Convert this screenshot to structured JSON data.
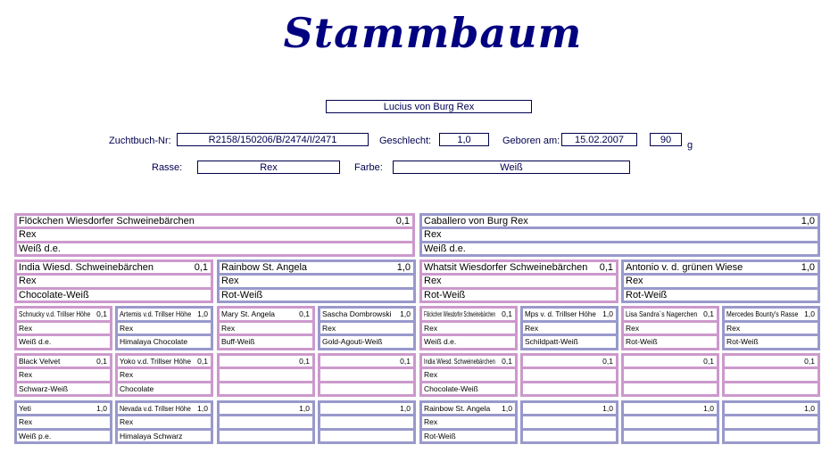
{
  "title": "Stammbaum",
  "animal": {
    "name": "Lucius von Burg Rex",
    "zuchtbuch_label": "Zuchtbuch-Nr:",
    "zuchtbuch": "R2158/150206/B/2474/I/2471",
    "geschlecht_label": "Geschlecht:",
    "geschlecht": "1,0",
    "geboren_label": "Geboren am:",
    "geboren": "15.02.2007",
    "gewicht": "90",
    "gewicht_unit": "g",
    "rasse_label": "Rasse:",
    "rasse": "Rex",
    "farbe_label": "Farbe:",
    "farbe": "Weiß"
  },
  "colors": {
    "female": "#cc99cc",
    "male": "#9999cc",
    "text": "#000080"
  },
  "generations": [
    [
      {
        "name": "Flöckchen Wiesdorfer Schweinebärchen",
        "sex": "0,1",
        "rasse": "Rex",
        "farbe": "Weiß d.e."
      },
      {
        "name": "Caballero von Burg Rex",
        "sex": "1,0",
        "rasse": "Rex",
        "farbe": "Weiß d.e."
      }
    ],
    [
      {
        "name": "India Wiesd. Schweinebärchen",
        "sex": "0,1",
        "rasse": "Rex",
        "farbe": "Chocolate-Weiß"
      },
      {
        "name": "Rainbow St. Angela",
        "sex": "1,0",
        "rasse": "Rex",
        "farbe": "Rot-Weiß"
      },
      {
        "name": "Whatsit Wiesdorfer Schweinebärchen",
        "sex": "0,1",
        "rasse": "Rex",
        "farbe": "Rot-Weiß"
      },
      {
        "name": "Antonio v. d. grünen Wiese",
        "sex": "1,0",
        "rasse": "Rex",
        "farbe": "Rot-Weiß"
      }
    ],
    [
      {
        "name": "Schnucky v.d. Trillser Höhe",
        "sex": "0,1",
        "rasse": "Rex",
        "farbe": "Weiß d.e."
      },
      {
        "name": "Artemis v.d. Trillser Höhe",
        "sex": "1,0",
        "rasse": "Rex",
        "farbe": "Himalaya Chocolate"
      },
      {
        "name": "Mary St. Angela",
        "sex": "0,1",
        "rasse": "Rex",
        "farbe": "Buff-Weiß"
      },
      {
        "name": "Sascha Dombrowski",
        "sex": "1,0",
        "rasse": "Rex",
        "farbe": "Gold-Agouti-Weiß"
      },
      {
        "name": "Flöckchen Wiesdorfer Schweinebärchen",
        "sex": "0,1",
        "rasse": "Rex",
        "farbe": "Weiß d.e."
      },
      {
        "name": "Mps v. d. Trillser Höhe",
        "sex": "1,0",
        "rasse": "Rex",
        "farbe": "Schildpatt-Weiß"
      },
      {
        "name": "Lisa Sandra´s Nagerchen",
        "sex": "0,1",
        "rasse": "Rex",
        "farbe": "Rot-Weiß"
      },
      {
        "name": "Mercedes Bounty's Rasse",
        "sex": "1,0",
        "rasse": "Rex",
        "farbe": "Rot-Weiß"
      }
    ],
    [
      {
        "name": "Black Velvet",
        "sex": "0,1",
        "rasse": "Rex",
        "farbe": "Schwarz-Weiß"
      },
      {
        "name": "Yoko v.d. Trillser Höhe",
        "sex": "0,1",
        "rasse": "Rex",
        "farbe": "Chocolate"
      },
      {
        "name": "",
        "sex": "0,1",
        "rasse": "",
        "farbe": ""
      },
      {
        "name": "",
        "sex": "0,1",
        "rasse": "",
        "farbe": ""
      },
      {
        "name": "India Wiesd. Schweinebärchen",
        "sex": "0,1",
        "rasse": "Rex",
        "farbe": "Chocolate-Weiß"
      },
      {
        "name": "",
        "sex": "0,1",
        "rasse": "",
        "farbe": ""
      },
      {
        "name": "",
        "sex": "0,1",
        "rasse": "",
        "farbe": ""
      },
      {
        "name": "",
        "sex": "0,1",
        "rasse": "",
        "farbe": ""
      }
    ],
    [
      {
        "name": "Yeti",
        "sex": "1,0",
        "rasse": "Rex",
        "farbe": "Weiß p.e."
      },
      {
        "name": "Nevada v.d. Trillser Höhe",
        "sex": "1,0",
        "rasse": "Rex",
        "farbe": "Himalaya Schwarz"
      },
      {
        "name": "",
        "sex": "1,0",
        "rasse": "",
        "farbe": ""
      },
      {
        "name": "",
        "sex": "1,0",
        "rasse": "",
        "farbe": ""
      },
      {
        "name": "Rainbow St. Angela",
        "sex": "1,0",
        "rasse": "Rex",
        "farbe": "Rot-Weiß"
      },
      {
        "name": "",
        "sex": "1,0",
        "rasse": "",
        "farbe": ""
      },
      {
        "name": "",
        "sex": "1,0",
        "rasse": "",
        "farbe": ""
      },
      {
        "name": "",
        "sex": "1,0",
        "rasse": "",
        "farbe": ""
      }
    ]
  ]
}
